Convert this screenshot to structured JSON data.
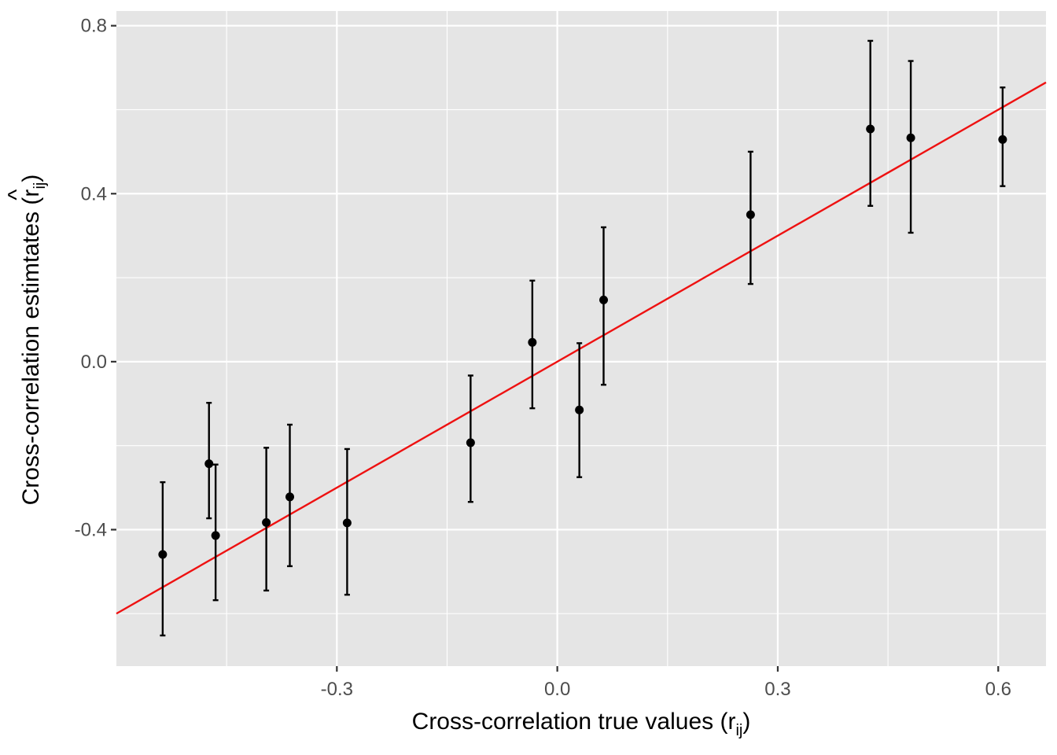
{
  "chart_data": {
    "type": "scatter",
    "xlabel": {
      "text": "Cross-correlation true values (r",
      "subscript": "ij",
      "suffix": ")"
    },
    "ylabel": {
      "text": "Cross-correlation estimtates (",
      "hat": "r",
      "subscript": "ij",
      "suffix": ")"
    },
    "xlim": [
      -0.6,
      0.665
    ],
    "ylim": [
      -0.725,
      0.835
    ],
    "x_ticks": [
      -0.3,
      0.0,
      0.3,
      0.6
    ],
    "x_tick_labels": [
      "-0.3",
      "0.0",
      "0.3",
      "0.6"
    ],
    "y_ticks": [
      -0.4,
      0.0,
      0.4,
      0.8
    ],
    "y_tick_labels": [
      "-0.4",
      "0.0",
      "0.4",
      "0.8"
    ],
    "grid": true,
    "panel_background": "#e5e5e5",
    "grid_color": "#ffffff",
    "point_color": "#000000",
    "line_color": "#ee1111",
    "reference_line": {
      "slope": 1,
      "intercept": 0
    },
    "points": [
      {
        "x": -0.537,
        "y": -0.459,
        "ymin": -0.652,
        "ymax": -0.287
      },
      {
        "x": -0.474,
        "y": -0.243,
        "ymin": -0.373,
        "ymax": -0.098
      },
      {
        "x": -0.465,
        "y": -0.414,
        "ymin": -0.568,
        "ymax": -0.245
      },
      {
        "x": -0.396,
        "y": -0.383,
        "ymin": -0.545,
        "ymax": -0.205
      },
      {
        "x": -0.364,
        "y": -0.322,
        "ymin": -0.487,
        "ymax": -0.15
      },
      {
        "x": -0.286,
        "y": -0.384,
        "ymin": -0.555,
        "ymax": -0.208
      },
      {
        "x": -0.118,
        "y": -0.193,
        "ymin": -0.334,
        "ymax": -0.033
      },
      {
        "x": -0.034,
        "y": 0.046,
        "ymin": -0.111,
        "ymax": 0.193
      },
      {
        "x": 0.03,
        "y": -0.115,
        "ymin": -0.275,
        "ymax": 0.044
      },
      {
        "x": 0.063,
        "y": 0.147,
        "ymin": -0.055,
        "ymax": 0.32
      },
      {
        "x": 0.263,
        "y": 0.35,
        "ymin": 0.185,
        "ymax": 0.5
      },
      {
        "x": 0.426,
        "y": 0.554,
        "ymin": 0.371,
        "ymax": 0.764
      },
      {
        "x": 0.481,
        "y": 0.533,
        "ymin": 0.307,
        "ymax": 0.716
      },
      {
        "x": 0.606,
        "y": 0.529,
        "ymin": 0.418,
        "ymax": 0.653
      }
    ]
  }
}
